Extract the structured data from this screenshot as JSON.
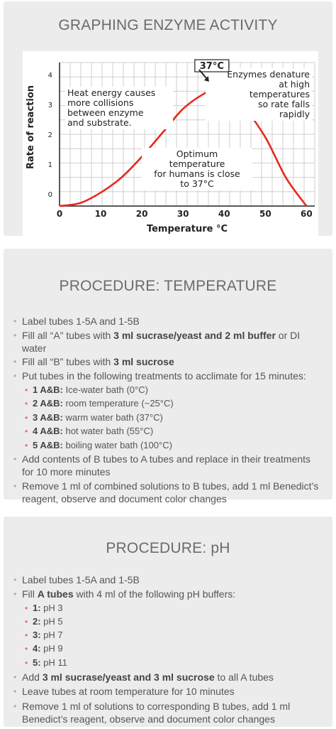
{
  "slides": {
    "graph": {
      "title": "GRAPHING ENZYME ACTIVITY"
    },
    "temperature": {
      "title": "PROCEDURE: TEMPERATURE",
      "items": [
        {
          "text": "Label tubes 1-5A and 1-5B"
        },
        {
          "pre": "Fill all “A” tubes with ",
          "b1": "3 ml sucrase/yeast and 2 ml buffer",
          "post": " or DI water"
        },
        {
          "pre": "Fill all “B” tubes with ",
          "b1": "3 ml sucrose"
        },
        {
          "text": "Put tubes in the following treatments to acclimate for 15 minutes:",
          "sub": [
            {
              "b": "1 A&B:",
              "t": " Ice-water bath (0°C)"
            },
            {
              "b": "2 A&B:",
              "t": " room temperature (~25°C)"
            },
            {
              "b": "3 A&B:",
              "t": " warm water bath (37°C)"
            },
            {
              "b": "4 A&B:",
              "t": " hot water bath (55°C)"
            },
            {
              "b": "5 A&B:",
              "t": " boiling water bath (100°C)"
            }
          ]
        },
        {
          "text": "Add contents of B tubes to A tubes and replace in their treatments for 10 more minutes"
        },
        {
          "text": "Remove 1 ml of combined solutions to B tubes, add 1 ml Benedict’s reagent, observe and document color changes"
        }
      ]
    },
    "ph": {
      "title": "PROCEDURE: pH",
      "items": [
        {
          "text": "Label tubes 1-5A and 1-5B"
        },
        {
          "pre": "Fill ",
          "b1": "A tubes",
          "post": " with 4 ml of the following pH buffers:",
          "sub": [
            {
              "b": "1:",
              "t": " pH 3"
            },
            {
              "b": "2:",
              "t": " pH 5"
            },
            {
              "b": "3:",
              "t": " pH 7"
            },
            {
              "b": "4:",
              "t": " pH 9"
            },
            {
              "b": "5:",
              "t": " pH 11"
            }
          ]
        },
        {
          "pre": "Add ",
          "b1": "3 ml sucrase/yeast and 3 ml sucrose",
          "post": " to all A tubes"
        },
        {
          "text": "Leave tubes at room temperature for 10 minutes"
        },
        {
          "text": "Remove 1 ml of solutions to corresponding B tubes, add 1 ml Benedict’s reagent, observe and document color changes"
        }
      ]
    }
  },
  "chart_data": {
    "type": "line",
    "xlabel": "Temperature °C",
    "ylabel": "Rate of reaction",
    "x_ticks": [
      0,
      10,
      20,
      30,
      40,
      50,
      60
    ],
    "y_ticks": [
      0,
      1,
      2,
      3,
      4
    ],
    "xlim": [
      0,
      62
    ],
    "ylim": [
      -0.4,
      4.4
    ],
    "grid": true,
    "series": [
      {
        "color": "#e8281e",
        "x": [
          0,
          5,
          10,
          15,
          20,
          25,
          30,
          35,
          37,
          40,
          45,
          50,
          55,
          60
        ],
        "y": [
          -0.45,
          -0.3,
          0.05,
          0.55,
          1.25,
          2.05,
          2.85,
          3.35,
          3.42,
          3.35,
          2.85,
          1.9,
          0.55,
          -0.45
        ]
      }
    ],
    "annotations": {
      "peak_label": "37°C",
      "left_note": [
        "Heat energy causes",
        "more collisions",
        "between enzyme",
        "and substrate."
      ],
      "right_note": [
        "Enzymes denature",
        "at high",
        "temperatures",
        "so rate falls",
        "rapidly"
      ],
      "optimum_note": [
        "Optimum",
        "temperature",
        "for humans is close",
        "to 37°C"
      ]
    }
  }
}
